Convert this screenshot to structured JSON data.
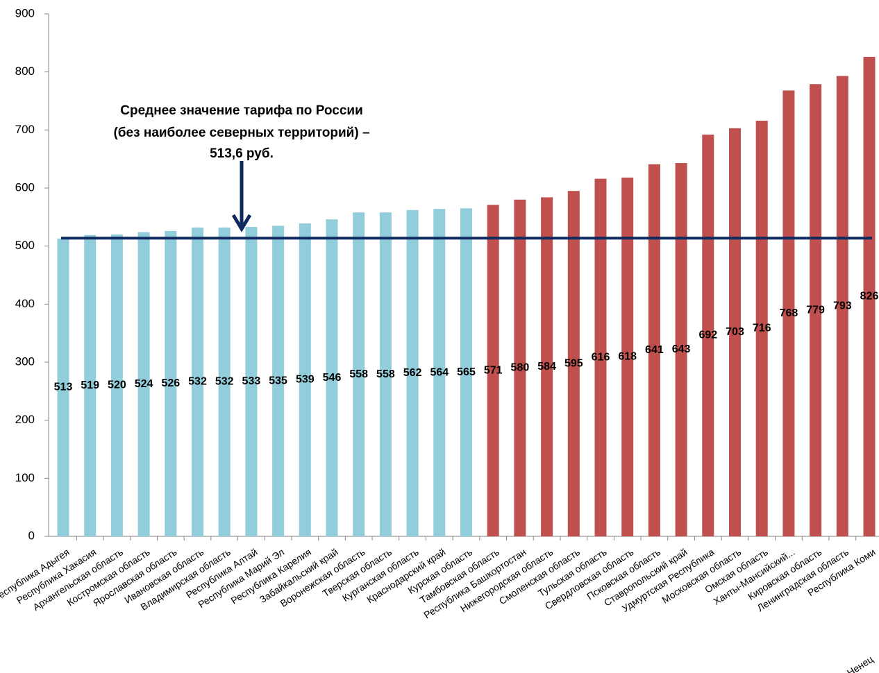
{
  "chart_data": {
    "type": "bar",
    "categories": [
      "Республика Адыгея",
      "Республика Хакасия",
      "Архангельская область",
      "Костромская область",
      "Ярославская область",
      "Ивановская область",
      "Владимирская область",
      "Республика Алтай",
      "Республика Марий Эл",
      "Республика Карелия",
      "Забайкальский край",
      "Воронежская область",
      "Тверская область",
      "Курганская область",
      "Краснодарский край",
      "Курская область",
      "Тамбовская область",
      "Республика Башкортостан",
      "Нижегородская область",
      "Смоленская область",
      "Тульская область",
      "Свердловская область",
      "Псковская область",
      "Ставропольский край",
      "Удмуртская Республика",
      "Московская область",
      "Омская область",
      "Ханты-Мансийский...",
      "Кировская область",
      "Ленинградская область",
      "Республика Коми"
    ],
    "series": [
      {
        "color": "#92cddc",
        "values": [
          513,
          519,
          520,
          524,
          526,
          532,
          532,
          533,
          535,
          539,
          546,
          558,
          558,
          562,
          564,
          565,
          null,
          null,
          null,
          null,
          null,
          null,
          null,
          null,
          null,
          null,
          null,
          null,
          null,
          null,
          null
        ]
      },
      {
        "color": "#c0504d",
        "values": [
          null,
          null,
          null,
          null,
          null,
          null,
          null,
          null,
          null,
          null,
          null,
          null,
          null,
          null,
          null,
          null,
          571,
          580,
          584,
          595,
          616,
          618,
          641,
          643,
          692,
          703,
          716,
          768,
          779,
          793,
          826
        ]
      }
    ],
    "ylim": [
      0,
      900
    ],
    "yticks": [
      0,
      100,
      200,
      300,
      400,
      500,
      600,
      700,
      800,
      900
    ],
    "grid": false,
    "reference_line": {
      "value": 513.6,
      "color": "#0e2a5e",
      "label": [
        "Среднее значение тарифа по России",
        "(без наиболее северных территорий)  –",
        "513,6 руб."
      ]
    },
    "clipped_label": "Ненец"
  }
}
